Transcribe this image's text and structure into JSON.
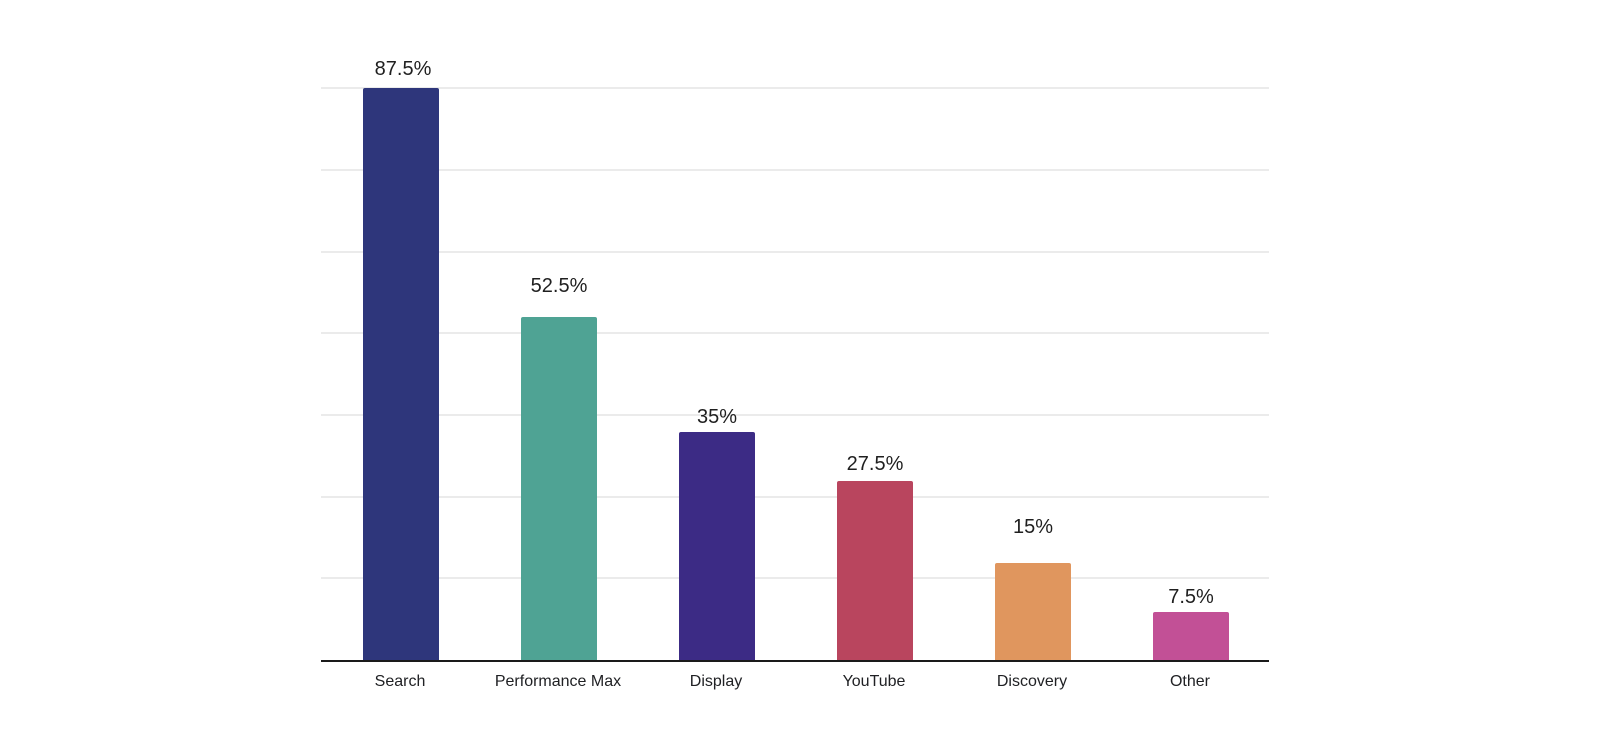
{
  "chart_data": {
    "type": "bar",
    "title": "",
    "xlabel": "",
    "ylabel": "",
    "ylim": [
      0,
      87.5
    ],
    "grid": true,
    "gridlines": [
      12.5,
      25,
      37.5,
      50,
      62.5,
      75,
      87.5
    ],
    "y_tick_labels_visible": false,
    "legend": "none",
    "categories": [
      "Search",
      "Performance Max",
      "Display",
      "YouTube",
      "Discovery",
      "Other"
    ],
    "values": [
      87.5,
      52.5,
      35,
      27.5,
      15,
      7.5
    ],
    "labels": [
      "87.5%",
      "52.5%",
      "35%",
      "27.5%",
      "15%",
      "7.5%"
    ],
    "colors": [
      "#2e367b",
      "#4fa394",
      "#3c2b85",
      "#b9455e",
      "#e0965e",
      "#c25096"
    ]
  },
  "bars": [
    {
      "category": "Search",
      "label": "87.5%",
      "value": 87.5,
      "color": "#2e367b"
    },
    {
      "category": "Performance Max",
      "label": "52.5%",
      "value": 52.5,
      "color": "#4fa394"
    },
    {
      "category": "Display",
      "label": "35%",
      "value": 35,
      "color": "#3c2b85"
    },
    {
      "category": "YouTube",
      "label": "27.5%",
      "value": 27.5,
      "color": "#b9455e"
    },
    {
      "category": "Discovery",
      "label": "15%",
      "value": 15,
      "color": "#e0965e"
    },
    {
      "category": "Other",
      "label": "7.5%",
      "value": 7.5,
      "color": "#c25096"
    }
  ]
}
